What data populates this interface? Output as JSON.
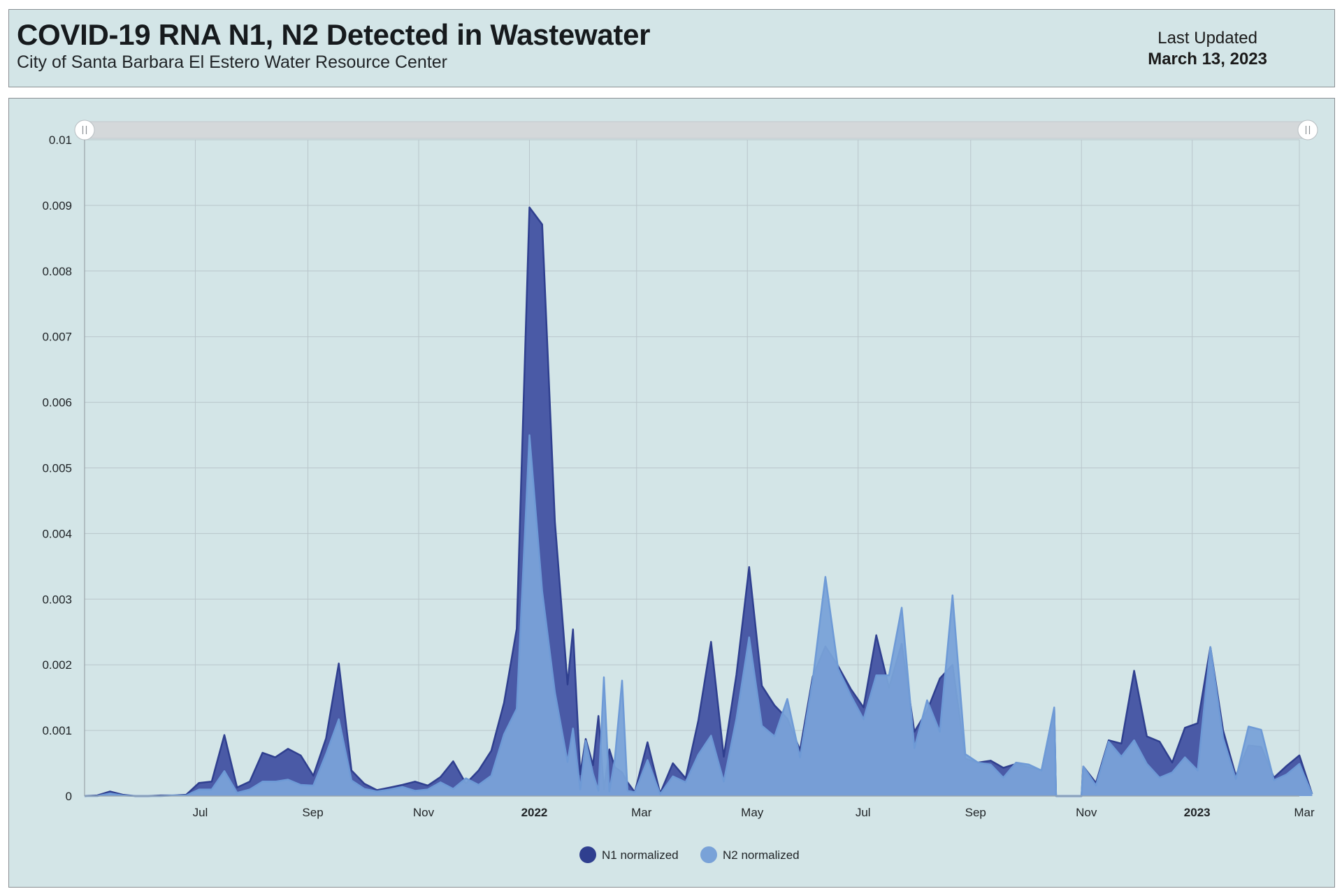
{
  "header": {
    "title": "COVID-19 RNA N1, N2 Detected in Wastewater",
    "subtitle": "City of Santa Barbara El Estero Water Resource Center",
    "last_updated_label": "Last Updated",
    "last_updated_date": "March 13, 2023"
  },
  "colors": {
    "panel_background": "#d3e5e7",
    "n1_fill": "#4a5aa6",
    "n1_stroke": "#2f3f8f",
    "n2_fill": "#79a2d8",
    "n2_stroke": "#6e9ad6",
    "gridline": "#b9c6cb",
    "scrollbar": "#d4d8da"
  },
  "chart_data": {
    "type": "area",
    "x_axis": {
      "type": "date",
      "range": [
        "2021-05-01",
        "2023-03-01"
      ],
      "ticks": [
        {
          "date": "2021-07-01",
          "label": "Jul",
          "bold": false
        },
        {
          "date": "2021-09-01",
          "label": "Sep",
          "bold": false
        },
        {
          "date": "2021-11-01",
          "label": "Nov",
          "bold": false
        },
        {
          "date": "2022-01-01",
          "label": "2022",
          "bold": true
        },
        {
          "date": "2022-03-01",
          "label": "Mar",
          "bold": false
        },
        {
          "date": "2022-05-01",
          "label": "May",
          "bold": false
        },
        {
          "date": "2022-07-01",
          "label": "Jul",
          "bold": false
        },
        {
          "date": "2022-09-01",
          "label": "Sep",
          "bold": false
        },
        {
          "date": "2022-11-01",
          "label": "Nov",
          "bold": false
        },
        {
          "date": "2023-01-01",
          "label": "2023",
          "bold": true
        },
        {
          "date": "2023-03-01",
          "label": "Mar",
          "bold": false
        }
      ]
    },
    "y_axis": {
      "range": [
        0,
        0.01
      ],
      "ticks": [
        "0",
        "0.001",
        "0.002",
        "0.003",
        "0.004",
        "0.005",
        "0.006",
        "0.007",
        "0.008",
        "0.009",
        "0.01"
      ]
    },
    "grid": true,
    "legend_position": "bottom-center",
    "navigator_scrollbar": true,
    "series": [
      {
        "name": "N1 normalized",
        "color": "#4a5aa6",
        "points": [
          [
            "2021-05-01",
            0
          ],
          [
            "2021-05-08",
            1e-05
          ],
          [
            "2021-05-15",
            7e-05
          ],
          [
            "2021-05-22",
            2e-05
          ],
          [
            "2021-05-29",
            0
          ],
          [
            "2021-06-05",
            0
          ],
          [
            "2021-06-12",
            1e-05
          ],
          [
            "2021-06-19",
            1e-05
          ],
          [
            "2021-06-26",
            2e-05
          ],
          [
            "2021-07-03",
            0.0002
          ],
          [
            "2021-07-10",
            0.00022
          ],
          [
            "2021-07-17",
            0.00093
          ],
          [
            "2021-07-24",
            0.00013
          ],
          [
            "2021-07-31",
            0.00022
          ],
          [
            "2021-08-07",
            0.00066
          ],
          [
            "2021-08-14",
            0.00059
          ],
          [
            "2021-08-21",
            0.00072
          ],
          [
            "2021-08-28",
            0.00062
          ],
          [
            "2021-09-04",
            0.00031
          ],
          [
            "2021-09-11",
            0.00088
          ],
          [
            "2021-09-18",
            0.00202
          ],
          [
            "2021-09-25",
            0.00039
          ],
          [
            "2021-10-02",
            0.00019
          ],
          [
            "2021-10-09",
            9e-05
          ],
          [
            "2021-10-16",
            0.00013
          ],
          [
            "2021-10-23",
            0.00017
          ],
          [
            "2021-10-30",
            0.00022
          ],
          [
            "2021-11-06",
            0.00016
          ],
          [
            "2021-11-13",
            0.00029
          ],
          [
            "2021-11-20",
            0.00053
          ],
          [
            "2021-11-27",
            0.00019
          ],
          [
            "2021-12-04",
            0.00039
          ],
          [
            "2021-12-11",
            0.00069
          ],
          [
            "2021-12-18",
            0.00142
          ],
          [
            "2021-12-25",
            0.00255
          ],
          [
            "2022-01-01",
            0.00897
          ],
          [
            "2022-01-08",
            0.00871
          ],
          [
            "2022-01-15",
            0.00418
          ],
          [
            "2022-01-22",
            0.0017
          ],
          [
            "2022-01-25",
            0.00254
          ],
          [
            "2022-01-29",
            0.00033
          ],
          [
            "2022-02-01",
            0.00087
          ],
          [
            "2022-02-05",
            0.00047
          ],
          [
            "2022-02-08",
            0.00122
          ],
          [
            "2022-02-11",
            0.0001
          ],
          [
            "2022-02-14",
            0.00071
          ],
          [
            "2022-02-17",
            0.00044
          ],
          [
            "2022-02-21",
            0.00036
          ],
          [
            "2022-02-24",
            0.00021
          ],
          [
            "2022-02-28",
            6e-05
          ],
          [
            "2022-03-07",
            0.00082
          ],
          [
            "2022-03-14",
            4e-05
          ],
          [
            "2022-03-21",
            0.0005
          ],
          [
            "2022-03-28",
            0.00027
          ],
          [
            "2022-04-04",
            0.00115
          ],
          [
            "2022-04-11",
            0.00235
          ],
          [
            "2022-04-18",
            0.0006
          ],
          [
            "2022-04-25",
            0.00185
          ],
          [
            "2022-05-02",
            0.00349
          ],
          [
            "2022-05-09",
            0.00168
          ],
          [
            "2022-05-16",
            0.00138
          ],
          [
            "2022-05-23",
            0.00118
          ],
          [
            "2022-05-30",
            0.0007
          ],
          [
            "2022-06-06",
            0.00182
          ],
          [
            "2022-06-13",
            0.00228
          ],
          [
            "2022-06-20",
            0.00198
          ],
          [
            "2022-06-27",
            0.00163
          ],
          [
            "2022-07-04",
            0.00135
          ],
          [
            "2022-07-11",
            0.00245
          ],
          [
            "2022-07-18",
            0.00165
          ],
          [
            "2022-07-25",
            0.00232
          ],
          [
            "2022-08-01",
            0.00098
          ],
          [
            "2022-08-08",
            0.0013
          ],
          [
            "2022-08-15",
            0.00179
          ],
          [
            "2022-08-22",
            0.002
          ],
          [
            "2022-08-29",
            0.00057
          ],
          [
            "2022-09-05",
            0.00051
          ],
          [
            "2022-09-12",
            0.00054
          ],
          [
            "2022-09-19",
            0.00043
          ],
          [
            "2022-09-26",
            0.00049
          ],
          [
            "2022-10-03",
            0.00044
          ],
          [
            "2022-10-10",
            0.00039
          ],
          [
            "2022-10-17",
            0.00132
          ],
          [
            "2022-10-18",
            0
          ],
          [
            "2022-11-01",
            0
          ],
          [
            "2022-11-02",
            0.00045
          ],
          [
            "2022-11-09",
            0.0002
          ],
          [
            "2022-11-16",
            0.00085
          ],
          [
            "2022-11-23",
            0.0008
          ],
          [
            "2022-11-30",
            0.00191
          ],
          [
            "2022-12-07",
            0.00091
          ],
          [
            "2022-12-14",
            0.00083
          ],
          [
            "2022-12-21",
            0.00051
          ],
          [
            "2022-12-28",
            0.00104
          ],
          [
            "2023-01-04",
            0.00111
          ],
          [
            "2023-01-11",
            0.00227
          ],
          [
            "2023-01-18",
            0.001
          ],
          [
            "2023-01-25",
            0.00031
          ],
          [
            "2023-02-01",
            0.00077
          ],
          [
            "2023-02-08",
            0.00075
          ],
          [
            "2023-02-15",
            0.00028
          ],
          [
            "2023-02-22",
            0.00046
          ],
          [
            "2023-03-01",
            0.00062
          ],
          [
            "2023-03-08",
            3e-05
          ]
        ]
      },
      {
        "name": "N2 normalized",
        "color": "#79a2d8",
        "points": [
          [
            "2021-05-01",
            0
          ],
          [
            "2021-05-08",
            0
          ],
          [
            "2021-05-15",
            4e-05
          ],
          [
            "2021-05-22",
            1e-05
          ],
          [
            "2021-05-29",
            0
          ],
          [
            "2021-06-05",
            0
          ],
          [
            "2021-06-12",
            0
          ],
          [
            "2021-06-19",
            1e-05
          ],
          [
            "2021-06-26",
            1e-05
          ],
          [
            "2021-07-03",
            0.0001
          ],
          [
            "2021-07-10",
            0.0001
          ],
          [
            "2021-07-17",
            0.00038
          ],
          [
            "2021-07-24",
            5e-05
          ],
          [
            "2021-07-31",
            0.0001
          ],
          [
            "2021-08-07",
            0.00022
          ],
          [
            "2021-08-14",
            0.00022
          ],
          [
            "2021-08-21",
            0.00025
          ],
          [
            "2021-08-28",
            0.00017
          ],
          [
            "2021-09-04",
            0.00016
          ],
          [
            "2021-09-11",
            0.00064
          ],
          [
            "2021-09-18",
            0.00117
          ],
          [
            "2021-09-25",
            0.00024
          ],
          [
            "2021-10-02",
            0.00011
          ],
          [
            "2021-10-09",
            7e-05
          ],
          [
            "2021-10-16",
            0.0001
          ],
          [
            "2021-10-23",
            0.00014
          ],
          [
            "2021-10-30",
            8e-05
          ],
          [
            "2021-11-06",
            0.0001
          ],
          [
            "2021-11-13",
            0.00021
          ],
          [
            "2021-11-20",
            0.00011
          ],
          [
            "2021-11-27",
            0.00027
          ],
          [
            "2021-12-04",
            0.00017
          ],
          [
            "2021-12-11",
            0.00031
          ],
          [
            "2021-12-18",
            0.00094
          ],
          [
            "2021-12-25",
            0.00133
          ],
          [
            "2022-01-01",
            0.0055
          ],
          [
            "2022-01-08",
            0.00312
          ],
          [
            "2022-01-15",
            0.00158
          ],
          [
            "2022-01-22",
            0.00052
          ],
          [
            "2022-01-25",
            0.00103
          ],
          [
            "2022-01-29",
            0.0001
          ],
          [
            "2022-02-01",
            0.00084
          ],
          [
            "2022-02-05",
            0.00034
          ],
          [
            "2022-02-08",
            8e-05
          ],
          [
            "2022-02-11",
            0.00181
          ],
          [
            "2022-02-14",
            7e-05
          ],
          [
            "2022-02-17",
            0.00056
          ],
          [
            "2022-02-21",
            0.00176
          ],
          [
            "2022-02-24",
            8e-05
          ],
          [
            "2022-02-28",
            6e-05
          ],
          [
            "2022-03-07",
            0.00055
          ],
          [
            "2022-03-14",
            3e-05
          ],
          [
            "2022-03-21",
            0.0003
          ],
          [
            "2022-03-28",
            0.00021
          ],
          [
            "2022-04-04",
            0.00063
          ],
          [
            "2022-04-11",
            0.00092
          ],
          [
            "2022-04-18",
            0.00022
          ],
          [
            "2022-04-25",
            0.00118
          ],
          [
            "2022-05-02",
            0.00242
          ],
          [
            "2022-05-09",
            0.00107
          ],
          [
            "2022-05-16",
            0.00091
          ],
          [
            "2022-05-23",
            0.00148
          ],
          [
            "2022-05-30",
            0.00059
          ],
          [
            "2022-06-06",
            0.00177
          ],
          [
            "2022-06-13",
            0.00334
          ],
          [
            "2022-06-20",
            0.00194
          ],
          [
            "2022-06-27",
            0.00153
          ],
          [
            "2022-07-04",
            0.00117
          ],
          [
            "2022-07-11",
            0.00184
          ],
          [
            "2022-07-18",
            0.00184
          ],
          [
            "2022-07-25",
            0.00287
          ],
          [
            "2022-08-01",
            0.00073
          ],
          [
            "2022-08-08",
            0.00146
          ],
          [
            "2022-08-15",
            0.00098
          ],
          [
            "2022-08-22",
            0.00306
          ],
          [
            "2022-08-29",
            0.00064
          ],
          [
            "2022-09-05",
            0.00051
          ],
          [
            "2022-09-12",
            0.00048
          ],
          [
            "2022-09-19",
            0.00028
          ],
          [
            "2022-09-26",
            0.00051
          ],
          [
            "2022-10-03",
            0.00048
          ],
          [
            "2022-10-10",
            0.00039
          ],
          [
            "2022-10-17",
            0.00135
          ],
          [
            "2022-10-18",
            0
          ],
          [
            "2022-11-01",
            0
          ],
          [
            "2022-11-02",
            0.00045
          ],
          [
            "2022-11-09",
            0.00016
          ],
          [
            "2022-11-16",
            0.00083
          ],
          [
            "2022-11-23",
            0.0006
          ],
          [
            "2022-11-30",
            0.00085
          ],
          [
            "2022-12-07",
            0.00049
          ],
          [
            "2022-12-14",
            0.00028
          ],
          [
            "2022-12-21",
            0.00036
          ],
          [
            "2022-12-28",
            0.00059
          ],
          [
            "2023-01-04",
            0.00039
          ],
          [
            "2023-01-11",
            0.00227
          ],
          [
            "2023-01-18",
            0.00088
          ],
          [
            "2023-01-25",
            0.00026
          ],
          [
            "2023-02-01",
            0.00106
          ],
          [
            "2023-02-08",
            0.00101
          ],
          [
            "2023-02-15",
            0.00024
          ],
          [
            "2023-02-22",
            0.00033
          ],
          [
            "2023-03-01",
            0.00049
          ],
          [
            "2023-03-08",
            3e-05
          ]
        ]
      }
    ]
  }
}
